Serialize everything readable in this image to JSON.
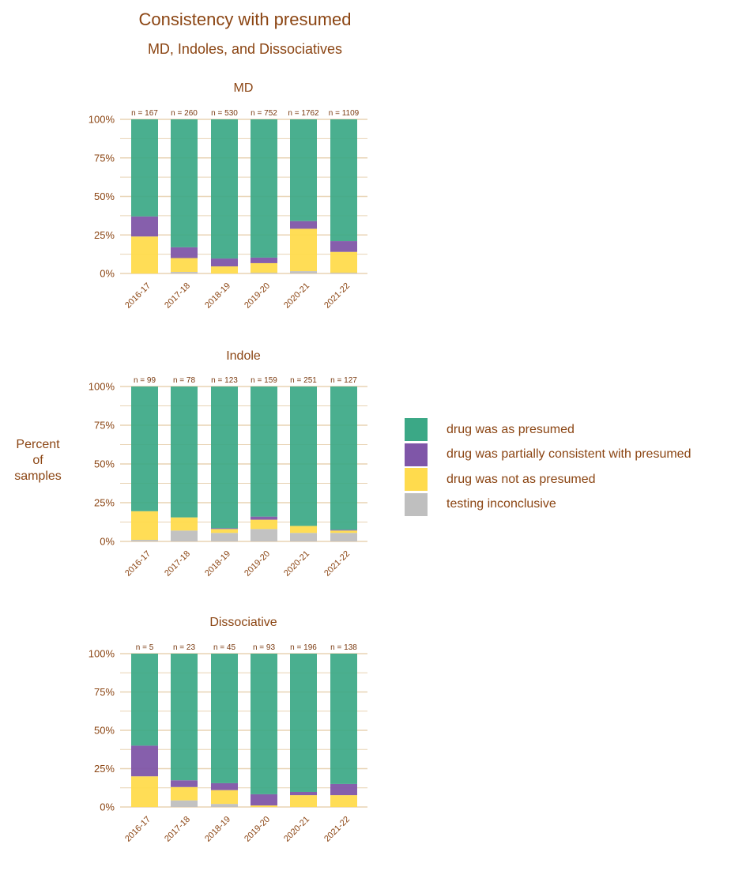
{
  "title": "Consistency with presumed",
  "subtitle": "MD, Indoles, and Dissociatives",
  "ylabel": [
    "Percent",
    "of",
    "samples"
  ],
  "colors": {
    "presumed": "#3BA886",
    "partial": "#7F56A8",
    "not": "#FFDB4D",
    "inconclusive": "#BFBFBF",
    "text": "#8B4513",
    "grid": "#E8D3B4"
  },
  "legend": [
    {
      "key": "presumed",
      "label": "drug was as presumed"
    },
    {
      "key": "partial",
      "label": "drug was partially consistent with presumed"
    },
    {
      "key": "not",
      "label": "drug was not as presumed"
    },
    {
      "key": "inconclusive",
      "label": "testing inconclusive"
    }
  ],
  "chart_data": [
    {
      "type": "bar",
      "stacked": true,
      "title": "MD",
      "categories": [
        "2016-17",
        "2017-18",
        "2018-19",
        "2019-20",
        "2020-21",
        "2021-22"
      ],
      "n_labels": [
        "n = 167",
        "n = 260",
        "n = 530",
        "n = 752",
        "n = 1762",
        "n = 1109"
      ],
      "yticks": [
        "0%",
        "25%",
        "50%",
        "75%",
        "100%"
      ],
      "ylim": [
        0,
        100
      ],
      "series": [
        {
          "key": "inconclusive",
          "values": [
            0,
            1,
            0,
            0.5,
            1.5,
            0.5
          ]
        },
        {
          "key": "not",
          "values": [
            24,
            9,
            4.6,
            6.2,
            27.5,
            13.5
          ]
        },
        {
          "key": "partial",
          "values": [
            13,
            7,
            5.1,
            3.6,
            5,
            7
          ]
        },
        {
          "key": "presumed",
          "values": [
            63,
            83,
            90.3,
            89.7,
            66,
            79
          ]
        }
      ]
    },
    {
      "type": "bar",
      "stacked": true,
      "title": "Indole",
      "categories": [
        "2016-17",
        "2017-18",
        "2018-19",
        "2019-20",
        "2020-21",
        "2021-22"
      ],
      "n_labels": [
        "n = 99",
        "n = 78",
        "n = 123",
        "n = 159",
        "n = 251",
        "n = 127"
      ],
      "yticks": [
        "0%",
        "25%",
        "50%",
        "75%",
        "100%"
      ],
      "ylim": [
        0,
        100
      ],
      "series": [
        {
          "key": "inconclusive",
          "values": [
            1,
            7,
            5.5,
            8,
            5.5,
            5.5
          ]
        },
        {
          "key": "not",
          "values": [
            18.5,
            8.5,
            2.5,
            6,
            4.5,
            1.5
          ]
        },
        {
          "key": "partial",
          "values": [
            0,
            0,
            0.5,
            2,
            0,
            0.5
          ]
        },
        {
          "key": "presumed",
          "values": [
            80.5,
            84.5,
            91.5,
            84,
            90,
            92.5
          ]
        }
      ]
    },
    {
      "type": "bar",
      "stacked": true,
      "title": "Dissociative",
      "categories": [
        "2016-17",
        "2017-18",
        "2018-19",
        "2019-20",
        "2020-21",
        "2021-22"
      ],
      "n_labels": [
        "n = 5",
        "n = 23",
        "n = 45",
        "n = 93",
        "n = 196",
        "n = 138"
      ],
      "yticks": [
        "0%",
        "25%",
        "50%",
        "75%",
        "100%"
      ],
      "ylim": [
        0,
        100
      ],
      "series": [
        {
          "key": "inconclusive",
          "values": [
            0,
            4.3,
            2,
            0,
            0,
            0
          ]
        },
        {
          "key": "not",
          "values": [
            20,
            8.7,
            9,
            1,
            7.7,
            7.7
          ]
        },
        {
          "key": "partial",
          "values": [
            20,
            4.4,
            4.5,
            7.3,
            2.1,
            7.3
          ]
        },
        {
          "key": "presumed",
          "values": [
            60,
            82.6,
            84.5,
            91.7,
            90.2,
            85
          ]
        }
      ]
    }
  ]
}
